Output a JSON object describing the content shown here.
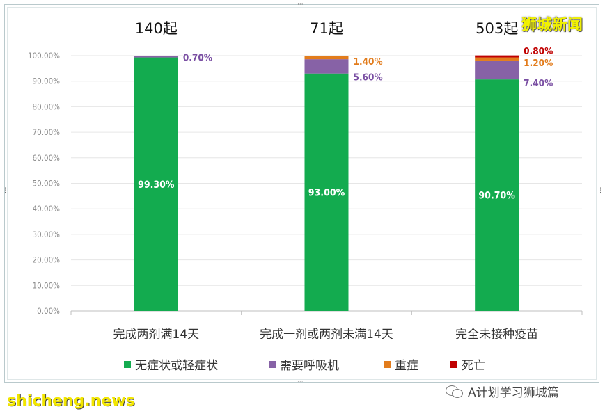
{
  "chart_data": {
    "type": "bar",
    "stacked": true,
    "categories": [
      "完成两剂满14天",
      "完成一剂或两剂未满14天",
      "完全未接种疫苗"
    ],
    "category_totals": [
      "140起",
      "71起",
      "503起"
    ],
    "series": [
      {
        "name": "无症状或轻症状",
        "color": "#13ab4f",
        "values": [
          99.3,
          93.0,
          90.7
        ],
        "labels": [
          "99.30%",
          "93.00%",
          "90.70%"
        ]
      },
      {
        "name": "需要呼吸机",
        "color": "#8762a6",
        "values": [
          0.7,
          5.6,
          7.4
        ],
        "labels": [
          "0.70%",
          "5.60%",
          "7.40%"
        ]
      },
      {
        "name": "重症",
        "color": "#e27c1c",
        "values": [
          0,
          1.4,
          1.2
        ],
        "labels": [
          "",
          "1.40%",
          "1.20%"
        ]
      },
      {
        "name": "死亡",
        "color": "#c00000",
        "values": [
          0,
          0,
          0.8
        ],
        "labels": [
          "",
          "",
          "0.80%"
        ]
      }
    ],
    "ylim": [
      0,
      100
    ],
    "yticks": [
      "0.00%",
      "10.00%",
      "20.00%",
      "30.00%",
      "40.00%",
      "50.00%",
      "60.00%",
      "70.00%",
      "80.00%",
      "90.00%",
      "100.00%"
    ],
    "grid": true,
    "legend_position": "bottom"
  },
  "watermarks": {
    "top_right": "狮城新闻",
    "bottom_left": "shicheng.news",
    "bottom_right": "A计划学习狮城篇"
  },
  "icons": [
    "wechat-icon"
  ]
}
